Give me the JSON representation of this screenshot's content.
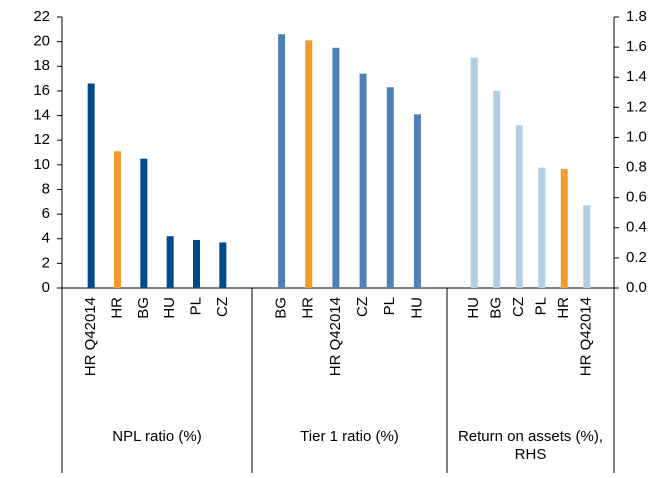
{
  "chart_data": {
    "type": "grouped-bar",
    "ylim": [
      0,
      22
    ],
    "yticks": [
      0,
      2,
      4,
      6,
      8,
      10,
      12,
      14,
      16,
      18,
      20,
      22
    ],
    "y2lim": [
      0,
      1.8
    ],
    "y2ticks": [
      {
        "value": 0,
        "label": "0.0"
      },
      0.2,
      0.4,
      0.6,
      0.8,
      {
        "value": 1,
        "label": "1.0"
      },
      1.2,
      1.4,
      1.6,
      1.8
    ],
    "groups": [
      {
        "name": "NPL ratio (%)",
        "categories": [
          "HR Q42014",
          "HR",
          "BG",
          "HU",
          "PL",
          "CZ"
        ],
        "values": [
          16.6,
          11.1,
          10.5,
          4.2,
          3.9,
          3.7
        ],
        "colors": [
          "#004a8c",
          "#f39a2e",
          "#004a8c",
          "#004a8c",
          "#004a8c",
          "#004a8c"
        ]
      },
      {
        "name": "Tier 1 ratio (%)",
        "categories": [
          "BG",
          "HR",
          "HR Q42014",
          "CZ",
          "PL",
          "HU"
        ],
        "values": [
          20.6,
          20.1,
          19.5,
          17.4,
          16.3,
          14.1
        ],
        "colors": [
          "#4f81b5",
          "#f39a2e",
          "#4f81b5",
          "#4f81b5",
          "#4f81b5",
          "#4f81b5"
        ]
      },
      {
        "name": "Return on assets (%), RHS",
        "axis": "y2",
        "categories": [
          "HU",
          "BG",
          "CZ",
          "PL",
          "HR",
          "HR Q42014"
        ],
        "values": [
          1.53,
          1.31,
          1.08,
          0.8,
          0.79,
          0.55
        ],
        "colors": [
          "#b5cde1",
          "#b5cde1",
          "#b5cde1",
          "#b5cde1",
          "#f39a2e",
          "#b5cde1"
        ]
      }
    ]
  }
}
